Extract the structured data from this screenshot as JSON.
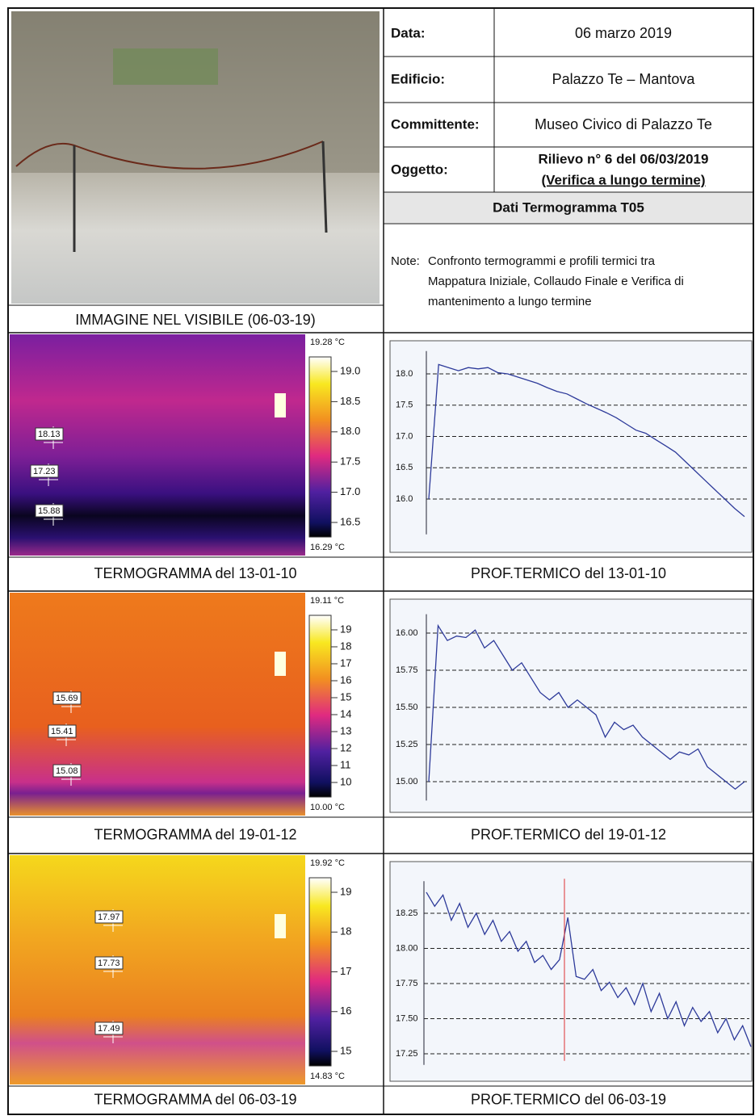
{
  "header": {
    "fields": [
      {
        "label": "Data:",
        "value": "06 marzo 2019"
      },
      {
        "label": "Edificio:",
        "value": "Palazzo Te – Mantova"
      },
      {
        "label": "Committente:",
        "value": "Museo Civico di Palazzo Te"
      },
      {
        "label": "Oggetto:",
        "value": [
          "Rilievo n° 6 del 06/03/2019",
          "(Verifica a lungo termine)"
        ]
      }
    ],
    "section_title": "Dati Termogramma T05",
    "note_label": "Note:",
    "note_lines": [
      "Confronto termogrammi e profili termici tra",
      "Mappatura Iniziale, Collaudo Finale e Verifica di",
      "mantenimento a lungo termine"
    ],
    "photo_caption": "IMMAGINE NEL VISIBILE (06-03-19)"
  },
  "rows": [
    {
      "thermogram": {
        "caption": "TERMOGRAMMA del 13-01-10",
        "scale_max": "19.28 °C",
        "scale_min": "16.29 °C",
        "scale_ticks": [
          "19.0",
          "18.5",
          "18.0",
          "17.5",
          "17.0",
          "16.5"
        ],
        "spots": [
          "18.13",
          "17.23",
          "15.88"
        ]
      },
      "profile": {
        "caption": "PROF.TERMICO del 13-01-10",
        "ylim": [
          15.5,
          18.3
        ],
        "yticks": [
          {
            "value": 18,
            "label": "18.0"
          },
          17.5,
          {
            "value": 17,
            "label": "17.0"
          },
          16.5,
          {
            "value": 16,
            "label": "16.0"
          }
        ],
        "values": [
          16.0,
          18.15,
          18.1,
          18.05,
          18.1,
          18.08,
          18.1,
          18.02,
          18.0,
          17.95,
          17.9,
          17.85,
          17.78,
          17.72,
          17.68,
          17.6,
          17.52,
          17.45,
          17.38,
          17.3,
          17.2,
          17.1,
          17.05,
          16.95,
          16.85,
          16.75,
          16.6,
          16.45,
          16.3,
          16.15,
          16.0,
          15.85,
          15.72
        ]
      }
    },
    {
      "thermogram": {
        "caption": "TERMOGRAMMA del 19-01-12",
        "scale_max": "19.11 °C",
        "scale_min": "10.00 °C",
        "scale_ticks": [
          "19",
          "18",
          "17",
          "16",
          "15",
          "14",
          "13",
          "12",
          "11",
          "10"
        ],
        "spots": [
          "15.69",
          "15.41",
          "15.08"
        ]
      },
      "profile": {
        "caption": "PROF.TERMICO del 19-01-12",
        "ylim": [
          14.9,
          16.1
        ],
        "yticks": [
          {
            "value": 16,
            "label": "16.00"
          },
          15.75,
          {
            "value": 15.5,
            "label": "15.50"
          },
          15.25,
          {
            "value": 15,
            "label": "15.00"
          }
        ],
        "values": [
          15.0,
          16.05,
          15.95,
          15.98,
          15.97,
          16.02,
          15.9,
          15.95,
          15.85,
          15.75,
          15.8,
          15.7,
          15.6,
          15.55,
          15.6,
          15.5,
          15.55,
          15.5,
          15.45,
          15.3,
          15.4,
          15.35,
          15.38,
          15.3,
          15.25,
          15.2,
          15.15,
          15.2,
          15.18,
          15.22,
          15.1,
          15.05,
          15.0,
          14.95,
          15.0
        ]
      }
    },
    {
      "thermogram": {
        "caption": "TERMOGRAMMA del 06-03-19",
        "scale_max": "19.92 °C",
        "scale_min": "14.83 °C",
        "scale_ticks": [
          "19",
          "18",
          "17",
          "16",
          "15"
        ],
        "spots": [
          "17.97",
          "17.73",
          "17.49"
        ]
      },
      "profile": {
        "caption": "PROF.TERMICO del 06-03-19",
        "ylim": [
          17.2,
          18.45
        ],
        "yticks": [
          18.25,
          {
            "value": 18,
            "label": "18.00"
          },
          17.75,
          {
            "value": 17.5,
            "label": "17.50"
          },
          17.25
        ],
        "values": [
          18.4,
          18.3,
          18.38,
          18.2,
          18.32,
          18.15,
          18.25,
          18.1,
          18.2,
          18.05,
          18.12,
          17.98,
          18.05,
          17.9,
          17.95,
          17.85,
          17.92,
          18.22,
          17.8,
          17.78,
          17.85,
          17.7,
          17.76,
          17.65,
          17.72,
          17.6,
          17.75,
          17.55,
          17.68,
          17.5,
          17.62,
          17.45,
          17.58,
          17.48,
          17.55,
          17.4,
          17.5,
          17.35,
          17.45,
          17.3
        ]
      }
    }
  ]
}
